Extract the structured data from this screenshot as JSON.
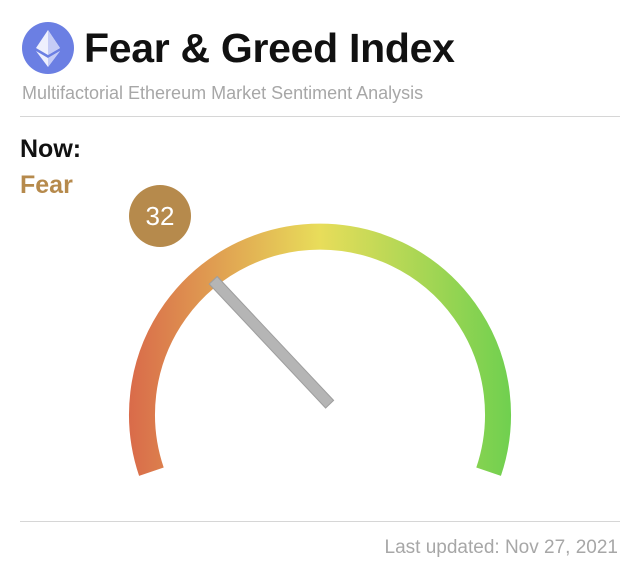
{
  "header": {
    "title": "Fear & Greed Index",
    "subtitle": "Multifactorial Ethereum Market Sentiment Analysis",
    "logo_icon": "ethereum-icon"
  },
  "current": {
    "label": "Now:",
    "sentiment": "Fear",
    "value": "32",
    "value_number": 32,
    "scale_max": 100
  },
  "footer": {
    "updated": "Last updated: Nov 27, 2021"
  },
  "colors": {
    "logo_bg": "#6b7fe3",
    "sentiment": "#b68a4c",
    "badge": "#b68a4c",
    "fear_end": "#d96a4a",
    "neutral": "#e8dd5a",
    "greed_end": "#6fd04f",
    "needle": "#b5b5b5"
  }
}
